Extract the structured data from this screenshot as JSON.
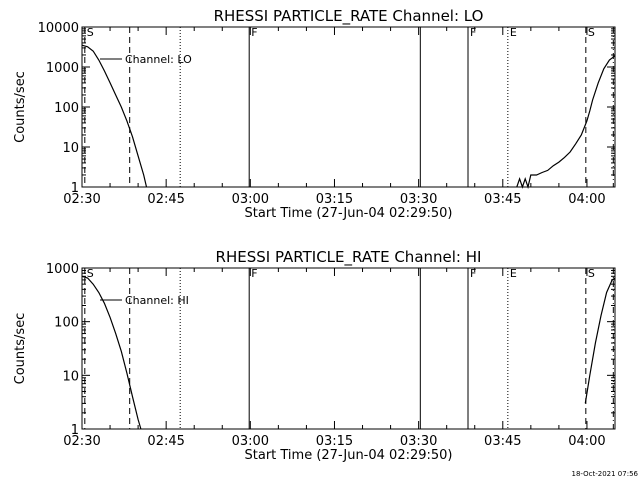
{
  "chart_data": [
    {
      "type": "line",
      "title": "RHESSI PARTICLE_RATE Channel: LO",
      "xlabel": "Start Time (27-Jun-04 02:29:50)",
      "ylabel": "Counts/sec",
      "yscale": "log",
      "ylim": [
        1,
        10000
      ],
      "xlim_minutes": [
        0,
        95
      ],
      "x_ticks": [
        {
          "t": 0,
          "label": "02:30"
        },
        {
          "t": 15,
          "label": "02:45"
        },
        {
          "t": 30,
          "label": "03:00"
        },
        {
          "t": 45,
          "label": "03:15"
        },
        {
          "t": 60,
          "label": "03:30"
        },
        {
          "t": 75,
          "label": "03:45"
        },
        {
          "t": 90,
          "label": "04:00"
        }
      ],
      "y_ticks": [
        {
          "v": 1,
          "label": "1"
        },
        {
          "v": 10,
          "label": "10"
        },
        {
          "v": 100,
          "label": "100"
        },
        {
          "v": 1000,
          "label": "1000"
        },
        {
          "v": 10000,
          "label": "10000"
        }
      ],
      "legend": {
        "label": "Channel: LO",
        "position": "top-left"
      },
      "series": [
        {
          "name": "Channel: LO",
          "segments": [
            [
              [
                0,
                3500
              ],
              [
                1,
                3200
              ],
              [
                2,
                2500
              ],
              [
                3,
                1500
              ],
              [
                4,
                800
              ],
              [
                5,
                400
              ],
              [
                6,
                200
              ],
              [
                7,
                100
              ],
              [
                8,
                45
              ],
              [
                9,
                18
              ],
              [
                10,
                6
              ],
              [
                11,
                2
              ],
              [
                11.5,
                1
              ]
            ],
            [
              [
                77.5,
                1
              ],
              [
                78,
                1.6
              ],
              [
                78.5,
                1
              ],
              [
                79,
                1.6
              ],
              [
                79.5,
                1
              ],
              [
                80,
                2
              ],
              [
                81,
                2
              ],
              [
                82,
                2.3
              ],
              [
                83,
                2.6
              ],
              [
                84,
                3.4
              ],
              [
                85,
                4.2
              ],
              [
                86,
                5.5
              ],
              [
                87,
                7.5
              ],
              [
                88,
                12
              ],
              [
                89,
                20
              ],
              [
                90,
                45
              ],
              [
                90.5,
                80
              ],
              [
                91,
                150
              ],
              [
                92,
                400
              ],
              [
                93,
                900
              ],
              [
                94,
                1500
              ],
              [
                95,
                1900
              ]
            ]
          ]
        }
      ],
      "markers": [
        {
          "t": 0.5,
          "style": "dashed",
          "label": "S"
        },
        {
          "t": 8.5,
          "style": "dashed",
          "label": ""
        },
        {
          "t": 17.5,
          "style": "dotted",
          "label": ""
        },
        {
          "t": 29.8,
          "style": "solid",
          "label": "F"
        },
        {
          "t": 60.3,
          "style": "solid",
          "label": ""
        },
        {
          "t": 68.8,
          "style": "solid",
          "label": "F"
        },
        {
          "t": 75.9,
          "style": "dotted",
          "label": "E"
        },
        {
          "t": 89.8,
          "style": "dashed",
          "label": "S"
        },
        {
          "t": 94.7,
          "style": "dashdot",
          "label": ""
        }
      ]
    },
    {
      "type": "line",
      "title": "RHESSI PARTICLE_RATE Channel: HI",
      "xlabel": "Start Time (27-Jun-04 02:29:50)",
      "ylabel": "Counts/sec",
      "yscale": "log",
      "ylim": [
        1,
        1000
      ],
      "xlim_minutes": [
        0,
        95
      ],
      "x_ticks": [
        {
          "t": 0,
          "label": "02:30"
        },
        {
          "t": 15,
          "label": "02:45"
        },
        {
          "t": 30,
          "label": "03:00"
        },
        {
          "t": 45,
          "label": "03:15"
        },
        {
          "t": 60,
          "label": "03:30"
        },
        {
          "t": 75,
          "label": "03:45"
        },
        {
          "t": 90,
          "label": "04:00"
        }
      ],
      "y_ticks": [
        {
          "v": 1,
          "label": "1"
        },
        {
          "v": 10,
          "label": "10"
        },
        {
          "v": 100,
          "label": "100"
        },
        {
          "v": 1000,
          "label": "1000"
        }
      ],
      "legend": {
        "label": "Channel: HI",
        "position": "top-left"
      },
      "series": [
        {
          "name": "Channel: HI",
          "segments": [
            [
              [
                0,
                700
              ],
              [
                1,
                650
              ],
              [
                2,
                500
              ],
              [
                3,
                350
              ],
              [
                4,
                220
              ],
              [
                5,
                120
              ],
              [
                6,
                60
              ],
              [
                7,
                28
              ],
              [
                8,
                11
              ],
              [
                9,
                4
              ],
              [
                10,
                1.5
              ],
              [
                10.5,
                1
              ]
            ],
            [
              [
                89.7,
                3
              ],
              [
                90.5,
                10
              ],
              [
                91.5,
                40
              ],
              [
                92.5,
                130
              ],
              [
                93.5,
                350
              ],
              [
                94.5,
                600
              ],
              [
                95,
                650
              ]
            ]
          ]
        }
      ],
      "markers": [
        {
          "t": 0.5,
          "style": "dashed",
          "label": "S"
        },
        {
          "t": 8.5,
          "style": "dashed",
          "label": ""
        },
        {
          "t": 17.5,
          "style": "dotted",
          "label": ""
        },
        {
          "t": 29.8,
          "style": "solid",
          "label": "F"
        },
        {
          "t": 60.3,
          "style": "solid",
          "label": ""
        },
        {
          "t": 68.8,
          "style": "solid",
          "label": "F"
        },
        {
          "t": 75.9,
          "style": "dotted",
          "label": "E"
        },
        {
          "t": 89.8,
          "style": "dashed",
          "label": "S"
        },
        {
          "t": 94.7,
          "style": "dashdot",
          "label": ""
        }
      ]
    }
  ],
  "footer": {
    "timestamp": "18-Oct-2021 07:56"
  }
}
